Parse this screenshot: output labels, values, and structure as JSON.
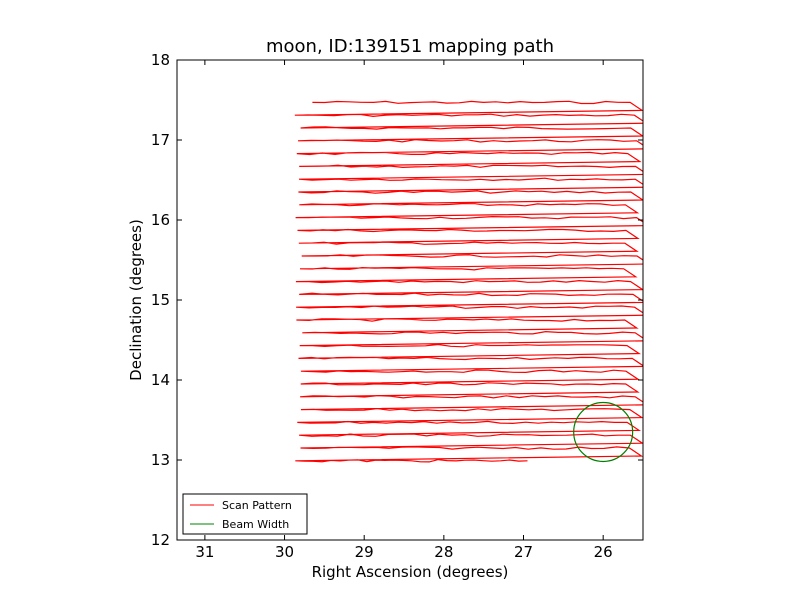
{
  "chart_data": {
    "type": "line",
    "title": "moon, ID:139151 mapping path",
    "xlabel": "Right Ascension (degrees)",
    "ylabel": "Declination (degrees)",
    "xlim": [
      31.35,
      25.5
    ],
    "ylim": [
      12,
      18
    ],
    "x_inverted": true,
    "xticks": [
      31,
      30,
      29,
      28,
      27,
      26
    ],
    "yticks": [
      12,
      13,
      14,
      15,
      16,
      17,
      18
    ],
    "grid": false,
    "legend_position": "lower-left",
    "legend": [
      {
        "label": "Scan Pattern",
        "color": "#ff0000"
      },
      {
        "label": "Beam Width",
        "color": "#008000"
      }
    ],
    "series": [
      {
        "name": "Scan Pattern",
        "color": "#ff0000",
        "scan_start_ra": 29.65,
        "scan_end_ra": 25.5,
        "scan_rows_dec": [
          17.47,
          17.31,
          17.15,
          16.99,
          16.83,
          16.67,
          16.51,
          16.35,
          16.19,
          16.03,
          15.87,
          15.71,
          15.55,
          15.39,
          15.23,
          15.07,
          14.91,
          14.75,
          14.59,
          14.43,
          14.27,
          14.11,
          13.95,
          13.79,
          13.63,
          13.47,
          13.31,
          13.15,
          12.99
        ]
      },
      {
        "name": "Beam Width",
        "color": "#008000",
        "center_ra": 26.0,
        "center_dec": 13.35,
        "radius_deg": 0.37
      }
    ]
  }
}
